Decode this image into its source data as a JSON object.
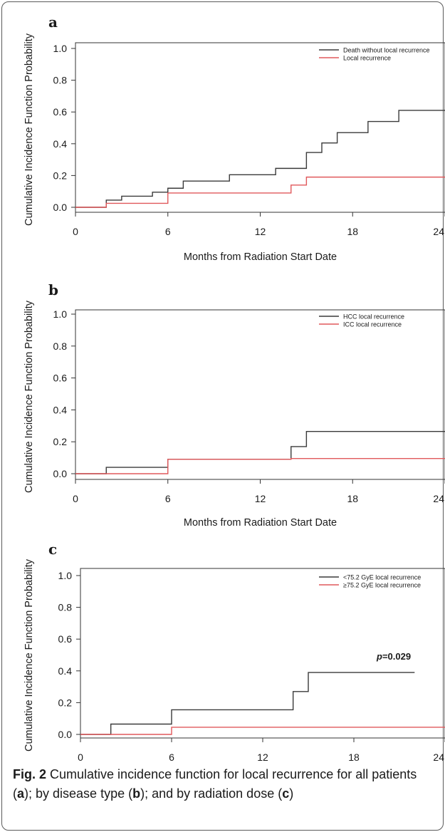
{
  "chart_data": [
    {
      "panel": "a",
      "type": "line",
      "step": true,
      "xlabel": "Months from Radiation Start Date",
      "ylabel": "Cumulative Incidence Function Probability",
      "xlim": [
        0,
        24
      ],
      "ylim": [
        0,
        1.0
      ],
      "xticks": [
        0,
        6,
        12,
        18,
        24
      ],
      "yticks": [
        0.0,
        0.2,
        0.4,
        0.6,
        0.8,
        1.0
      ],
      "legend_position": "top-right",
      "series": [
        {
          "name": "Death without local recurrence",
          "color": "#3a3a3a",
          "x": [
            0,
            2,
            3,
            5,
            6,
            7,
            10,
            13,
            15,
            16,
            17,
            19,
            21,
            24
          ],
          "y": [
            0.0,
            0.045,
            0.07,
            0.095,
            0.12,
            0.165,
            0.205,
            0.245,
            0.345,
            0.405,
            0.47,
            0.54,
            0.61,
            0.61
          ]
        },
        {
          "name": "Local recurrence",
          "color": "#e0585b",
          "x": [
            0,
            2,
            6,
            14,
            15,
            24
          ],
          "y": [
            0.0,
            0.025,
            0.09,
            0.14,
            0.19,
            0.19
          ]
        }
      ]
    },
    {
      "panel": "b",
      "type": "line",
      "step": true,
      "xlabel": "Months from Radiation Start Date",
      "ylabel": "Cumulative Incidence Function Probability",
      "xlim": [
        0,
        24
      ],
      "ylim": [
        0,
        1.0
      ],
      "xticks": [
        0,
        6,
        12,
        18,
        24
      ],
      "yticks": [
        0.0,
        0.2,
        0.4,
        0.6,
        0.8,
        1.0
      ],
      "legend_position": "top-right",
      "series": [
        {
          "name": "HCC local recurrence",
          "color": "#3a3a3a",
          "x": [
            0,
            2,
            6,
            14,
            15,
            24
          ],
          "y": [
            0.0,
            0.04,
            0.09,
            0.17,
            0.265,
            0.265
          ]
        },
        {
          "name": "ICC local recurrence",
          "color": "#e0585b",
          "x": [
            0,
            6,
            14,
            24
          ],
          "y": [
            0.0,
            0.09,
            0.095,
            0.095
          ]
        }
      ]
    },
    {
      "panel": "c",
      "type": "line",
      "step": true,
      "xlabel": "Months from Radiation Start Date",
      "ylabel": "Cumulative Incidence Function Probability",
      "xlim": [
        0,
        24
      ],
      "ylim": [
        0,
        1.0
      ],
      "xticks": [
        0,
        6,
        12,
        18,
        24
      ],
      "yticks": [
        0.0,
        0.2,
        0.4,
        0.6,
        0.8,
        1.0
      ],
      "legend_position": "top-right",
      "annotation": {
        "prefix": "p",
        "text": "=0.029",
        "x": 19.5,
        "y": 0.47
      },
      "series": [
        {
          "name": "<75.2 GyE local recurrence",
          "color": "#3a3a3a",
          "x": [
            0,
            2,
            6,
            14,
            15,
            22
          ],
          "y": [
            0.0,
            0.065,
            0.155,
            0.27,
            0.39,
            0.39
          ]
        },
        {
          "name": "≥75.2 GyE local recurrence",
          "color": "#e0585b",
          "x": [
            0,
            6,
            24
          ],
          "y": [
            0.0,
            0.045,
            0.045
          ]
        }
      ]
    }
  ],
  "caption": {
    "label": "Fig. 2",
    "text_1": "  Cumulative incidence function for local recurrence for all patients (",
    "letter_a": "a",
    "text_2": "); by disease type (",
    "letter_b": "b",
    "text_3": "); and by radiation dose (",
    "letter_c": "c",
    "text_4": ")"
  }
}
